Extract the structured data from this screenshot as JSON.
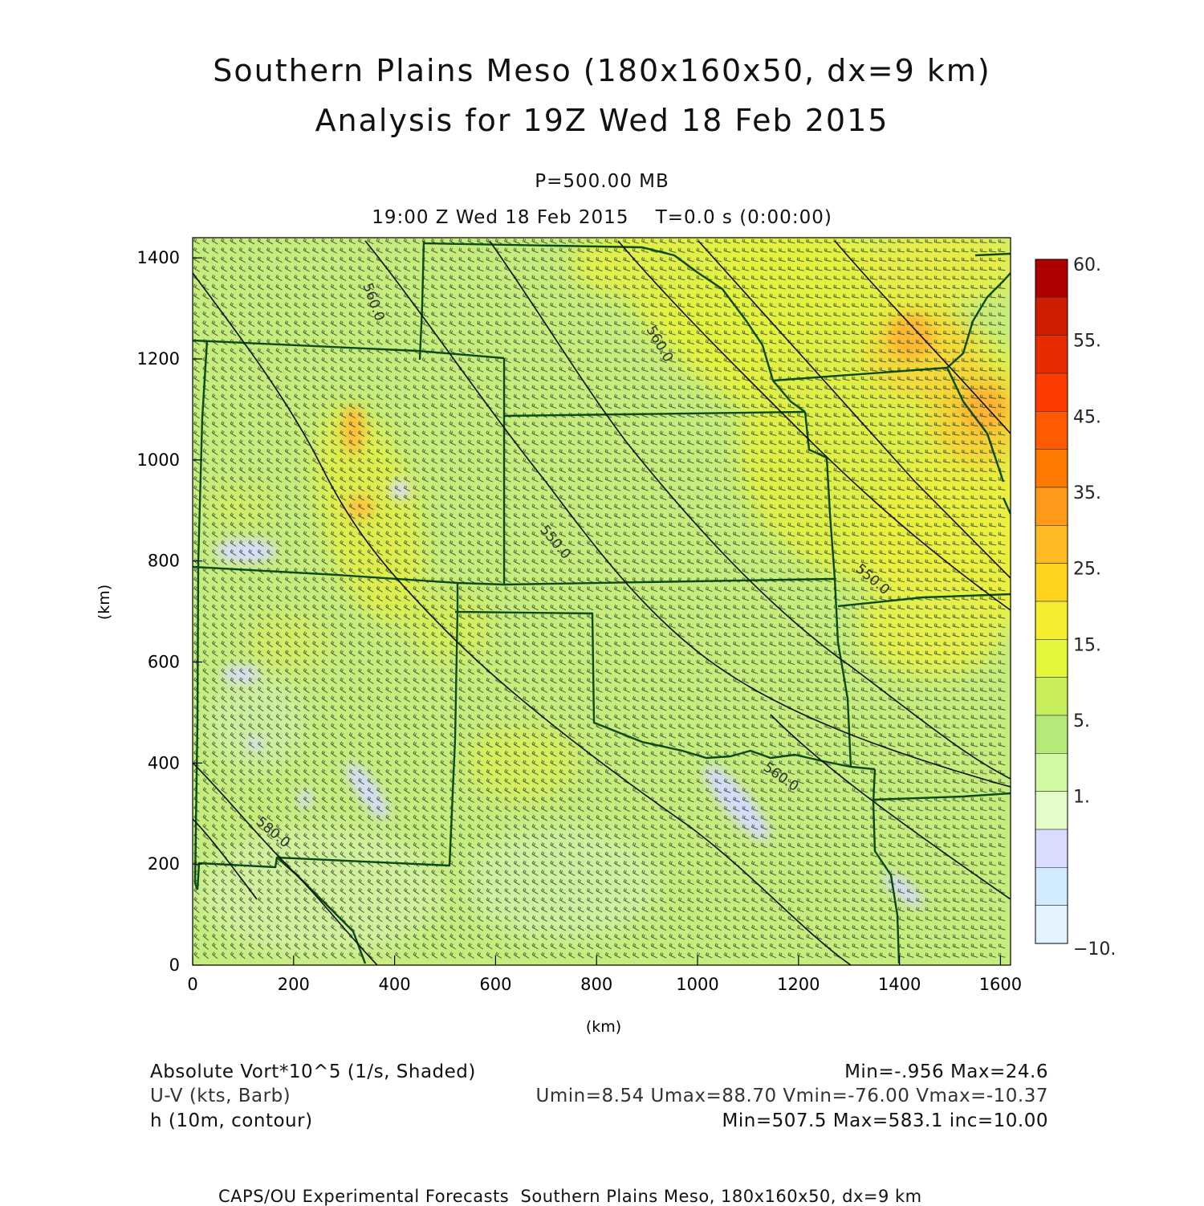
{
  "title": {
    "line1": "Southern Plains Meso (180x160x50, dx=9 km)",
    "line2": "Analysis for 19Z Wed 18 Feb 2015"
  },
  "subtitle": {
    "level": "P=500.00 MB",
    "time": "19:00 Z Wed 18 Feb 2015    T=0.0 s (0:00:00)"
  },
  "axes": {
    "xlabel": "(km)",
    "ylabel": "(km)",
    "xticks": [
      0,
      200,
      400,
      600,
      800,
      1000,
      1200,
      1400,
      1600
    ],
    "yticks": [
      0,
      200,
      400,
      600,
      800,
      1000,
      1200,
      1400
    ],
    "xlim": [
      0,
      1620
    ],
    "ylim": [
      0,
      1440
    ]
  },
  "colorbar": {
    "labels": [
      "60.",
      "55.",
      "45.",
      "35.",
      "25.",
      "15.",
      "5.",
      "1.",
      "-10."
    ],
    "colors_top_to_bottom": [
      "#b00000",
      "#d01c00",
      "#e82c00",
      "#ff3c00",
      "#ff5a00",
      "#ff7800",
      "#ff9a1a",
      "#ffbb22",
      "#ffd21e",
      "#f5ee30",
      "#e4f53a",
      "#c9ee5c",
      "#b5ea7a",
      "#d2f8a4",
      "#e2fcca",
      "#d8dcff",
      "#d2eaff",
      "#e4f4ff"
    ]
  },
  "contours": {
    "labels": [
      "560.0",
      "560.0",
      "550.0",
      "550.0",
      "560.0",
      "580.0"
    ]
  },
  "legend": {
    "field1_name": "Absolute Vort*10^5 (1/s, Shaded)",
    "field1_stats": "Min=-.956 Max=24.6",
    "field2_name": "U-V (kts, Barb)",
    "field2_stats": "Umin=8.54 Umax=88.70 Vmin=-76.00 Vmax=-10.37",
    "field3_name": "h (10m, contour)",
    "field3_stats": "Min=507.5 Max=583.1 inc=10.00"
  },
  "footer": "CAPS/OU Experimental Forecasts  Southern Plains Meso, 180x160x50, dx=9 km",
  "colors": {
    "base_field": "#c6ec7e",
    "state_lines": "#0c4a18",
    "contours": "#111111",
    "barbs": "#2e4a2a"
  }
}
